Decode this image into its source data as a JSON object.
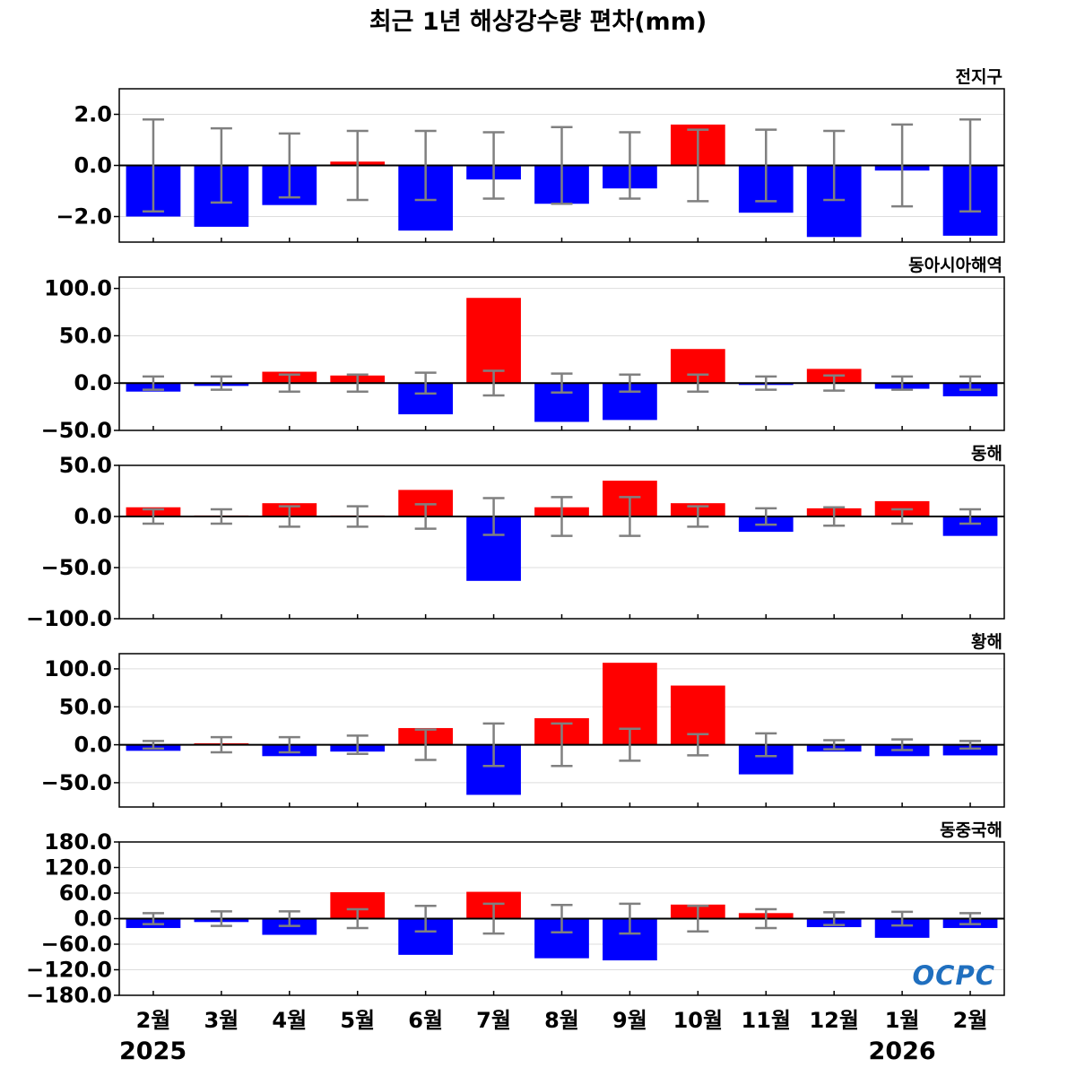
{
  "title": "최근 1년 해상강수량 편차(mm)",
  "colors": {
    "positive": "#ff0000",
    "negative": "#0000ff",
    "error_bar": "#808080",
    "zero_line": "#000000",
    "grid": "#dddddd",
    "logo": "#1f6fbf"
  },
  "logo": "OCPC",
  "x_tick_labels": [
    "2월",
    "3월",
    "4월",
    "5월",
    "6월",
    "7월",
    "8월",
    "9월",
    "10월",
    "11월",
    "12월",
    "1월",
    "2월"
  ],
  "year_labels": [
    "2025",
    "2026"
  ],
  "chart_data": [
    {
      "type": "bar",
      "label": "전지구",
      "categories": [
        "2월",
        "3월",
        "4월",
        "5월",
        "6월",
        "7월",
        "8월",
        "9월",
        "10월",
        "11월",
        "12월",
        "1월",
        "2월"
      ],
      "values": [
        -2.0,
        -2.4,
        -1.55,
        0.15,
        -2.55,
        -0.55,
        -1.5,
        -0.9,
        1.6,
        -1.85,
        -2.8,
        -0.2,
        -2.75
      ],
      "error": [
        1.8,
        1.45,
        1.25,
        1.35,
        1.35,
        1.3,
        1.5,
        1.3,
        1.4,
        1.4,
        1.35,
        1.6,
        1.8
      ],
      "ylim": [
        -3.0,
        3.0
      ],
      "yticks": [
        -2.0,
        0.0,
        2.0
      ],
      "ytick_labels": [
        "−2.0",
        "0.0",
        "2.0"
      ]
    },
    {
      "type": "bar",
      "label": "동아시아해역",
      "categories": [
        "2월",
        "3월",
        "4월",
        "5월",
        "6월",
        "7월",
        "8월",
        "9월",
        "10월",
        "11월",
        "12월",
        "1월",
        "2월"
      ],
      "values": [
        -9,
        -3,
        12,
        8,
        -33,
        90,
        -41,
        -39,
        36,
        -2,
        15,
        -6,
        -14
      ],
      "error": [
        7,
        7,
        9,
        9,
        11,
        13,
        10,
        9,
        9,
        7,
        8,
        7,
        7
      ],
      "ylim": [
        -50,
        112
      ],
      "yticks": [
        -50,
        0,
        50,
        100
      ],
      "ytick_labels": [
        "−50.0",
        "0.0",
        "50.0",
        "100.0"
      ]
    },
    {
      "type": "bar",
      "label": "동해",
      "categories": [
        "2월",
        "3월",
        "4월",
        "5월",
        "6월",
        "7월",
        "8월",
        "9월",
        "10월",
        "11월",
        "12월",
        "1월",
        "2월"
      ],
      "values": [
        9,
        1,
        13,
        1,
        26,
        -63,
        9,
        35,
        13,
        -15,
        8,
        15,
        -19
      ],
      "error": [
        7,
        7,
        10,
        10,
        12,
        18,
        19,
        19,
        10,
        8,
        9,
        7,
        7
      ],
      "ylim": [
        -100,
        50
      ],
      "yticks": [
        -100,
        -50,
        0,
        50
      ],
      "ytick_labels": [
        "−100.0",
        "−50.0",
        "0.0",
        "50.0"
      ]
    },
    {
      "type": "bar",
      "label": "황해",
      "categories": [
        "2월",
        "3월",
        "4월",
        "5월",
        "6월",
        "7월",
        "8월",
        "9월",
        "10월",
        "11월",
        "12월",
        "1월",
        "2월"
      ],
      "values": [
        -8,
        2,
        -15,
        -9,
        22,
        -66,
        35,
        108,
        78,
        -39,
        -9,
        -15,
        -14
      ],
      "error": [
        5,
        10,
        10,
        12,
        20,
        28,
        28,
        21,
        14,
        15,
        6,
        7,
        5
      ],
      "ylim": [
        -82,
        120
      ],
      "yticks": [
        -50,
        0,
        50,
        100
      ],
      "ytick_labels": [
        "−50.0",
        "0.0",
        "50.0",
        "100.0"
      ]
    },
    {
      "type": "bar",
      "label": "동중국해",
      "categories": [
        "2월",
        "3월",
        "4월",
        "5월",
        "6월",
        "7월",
        "8월",
        "9월",
        "10월",
        "11월",
        "12월",
        "1월",
        "2월"
      ],
      "values": [
        -22,
        -8,
        -38,
        62,
        -85,
        63,
        -93,
        -98,
        33,
        13,
        -20,
        -45,
        -22
      ],
      "error": [
        13,
        17,
        17,
        22,
        30,
        35,
        32,
        35,
        30,
        22,
        15,
        16,
        13
      ],
      "ylim": [
        -180,
        180
      ],
      "yticks": [
        -180,
        -120,
        -60,
        0,
        60,
        120,
        180
      ],
      "ytick_labels": [
        "−180.0",
        "−120.0",
        "−60.0",
        "0.0",
        "60.0",
        "120.0",
        "180.0"
      ]
    }
  ]
}
